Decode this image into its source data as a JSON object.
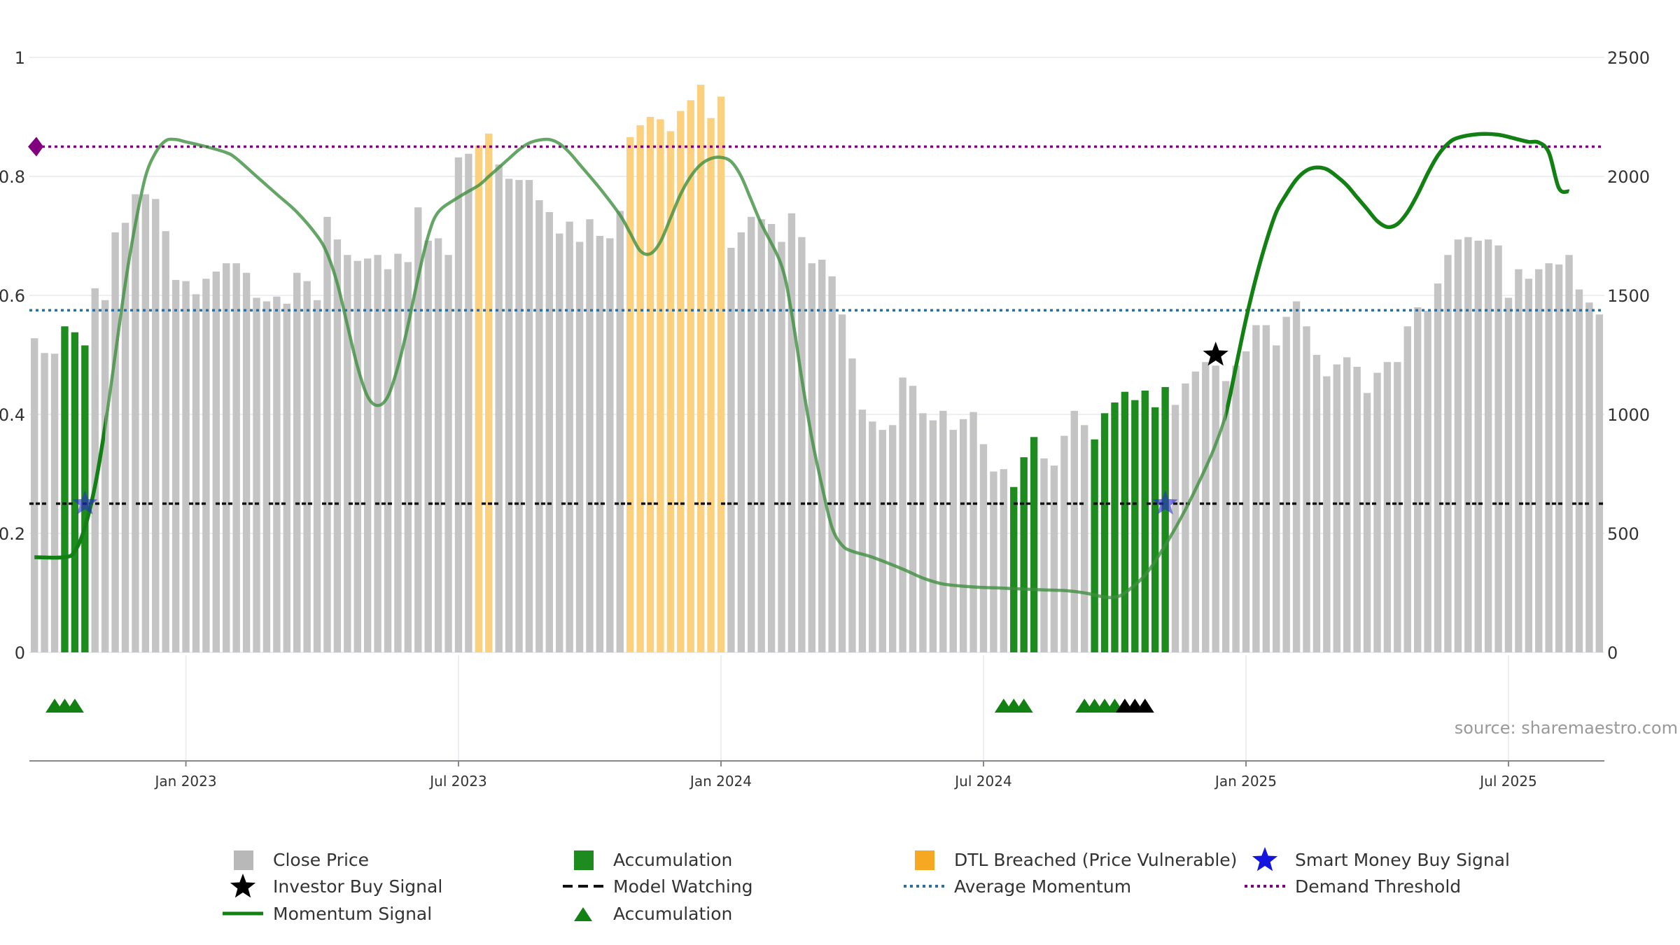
{
  "chart_data": {
    "type": "bar",
    "title": "",
    "y_left_ticks": [
      "1",
      "0.8",
      "0.6",
      "0.4",
      "0.2",
      "0"
    ],
    "y_right_ticks": [
      "2500",
      "2000",
      "1500",
      "1000",
      "500",
      "0"
    ],
    "x_tick_labels": [
      "Jan 2023",
      "Jul 2023",
      "Jan 2024",
      "Jul 2024",
      "Jan 2025",
      "Jul 2025"
    ],
    "ylim_left": [
      0,
      1
    ],
    "ylim_right": [
      0,
      2500
    ],
    "weeks_count": 156,
    "close_price": [
      1320,
      1258,
      1255,
      1370,
      1345,
      1290,
      1530,
      1480,
      1765,
      1805,
      1925,
      1925,
      1905,
      1770,
      1565,
      1560,
      1505,
      1570,
      1600,
      1635,
      1635,
      1595,
      1490,
      1475,
      1495,
      1465,
      1595,
      1560,
      1480,
      1830,
      1735,
      1670,
      1645,
      1655,
      1670,
      1610,
      1675,
      1640,
      1870,
      1730,
      1740,
      1670,
      2080,
      2095,
      2130,
      2180,
      2050,
      1990,
      1985,
      1985,
      1900,
      1850,
      1760,
      1810,
      1725,
      1820,
      1750,
      1740,
      1855,
      2165,
      2215,
      2250,
      2240,
      2190,
      2275,
      2320,
      2385,
      2245,
      2335,
      1700,
      1765,
      1830,
      1820,
      1800,
      1725,
      1845,
      1745,
      1635,
      1650,
      1580,
      1420,
      1235,
      1020,
      970,
      935,
      955,
      1155,
      1120,
      1005,
      975,
      1015,
      935,
      980,
      1010,
      875,
      760,
      770,
      695,
      820,
      905,
      815,
      785,
      910,
      1015,
      955,
      895,
      1005,
      1050,
      1095,
      1060,
      1100,
      1030,
      1115,
      1040,
      1130,
      1180,
      1220,
      1205,
      1140,
      1205,
      1265,
      1375,
      1375,
      1290,
      1410,
      1475,
      1370,
      1250,
      1160,
      1210,
      1240,
      1200,
      1090,
      1175,
      1220,
      1220,
      1370,
      1450,
      1435,
      1550,
      1670,
      1735,
      1745,
      1730,
      1735,
      1710,
      1490,
      1610,
      1570,
      1610,
      1635,
      1630,
      1670,
      1525,
      1470,
      1420
    ],
    "bar_state_note": "0 = Close Price (grey), 1 = Accumulation (green), 2 = DTL Breached (orange)",
    "bar_state": [
      0,
      0,
      0,
      1,
      1,
      1,
      0,
      0,
      0,
      0,
      0,
      0,
      0,
      0,
      0,
      0,
      0,
      0,
      0,
      0,
      0,
      0,
      0,
      0,
      0,
      0,
      0,
      0,
      0,
      0,
      0,
      0,
      0,
      0,
      0,
      0,
      0,
      0,
      0,
      0,
      0,
      0,
      0,
      0,
      2,
      2,
      0,
      0,
      0,
      0,
      0,
      0,
      0,
      0,
      0,
      0,
      0,
      0,
      0,
      2,
      2,
      2,
      2,
      2,
      2,
      2,
      2,
      2,
      2,
      0,
      0,
      0,
      0,
      0,
      0,
      0,
      0,
      0,
      0,
      0,
      0,
      0,
      0,
      0,
      0,
      0,
      0,
      0,
      0,
      0,
      0,
      0,
      0,
      0,
      0,
      0,
      0,
      1,
      1,
      1,
      0,
      0,
      0,
      0,
      0,
      1,
      1,
      1,
      1,
      1,
      1,
      1,
      1,
      0,
      0,
      0,
      0,
      0,
      0,
      0,
      0,
      0,
      0,
      0,
      0,
      0,
      0,
      0,
      0,
      0,
      0,
      0,
      0,
      0,
      0,
      0,
      0,
      0,
      0,
      0,
      0,
      0,
      0,
      0,
      0,
      0,
      0,
      0,
      0,
      0,
      0,
      0,
      0,
      0,
      0,
      0
    ],
    "momentum_signal_points": [
      [
        0,
        0.16
      ],
      [
        3,
        0.16
      ],
      [
        4,
        0.17
      ],
      [
        5,
        0.21
      ],
      [
        6,
        0.28
      ],
      [
        7,
        0.38
      ],
      [
        8,
        0.5
      ],
      [
        9,
        0.62
      ],
      [
        10,
        0.72
      ],
      [
        11,
        0.8
      ],
      [
        12,
        0.84
      ],
      [
        13,
        0.86
      ],
      [
        14,
        0.862
      ],
      [
        15,
        0.858
      ],
      [
        17,
        0.85
      ],
      [
        19,
        0.84
      ],
      [
        20,
        0.83
      ],
      [
        22,
        0.8
      ],
      [
        24,
        0.77
      ],
      [
        26,
        0.74
      ],
      [
        28,
        0.7
      ],
      [
        29,
        0.67
      ],
      [
        30,
        0.62
      ],
      [
        31,
        0.55
      ],
      [
        32,
        0.48
      ],
      [
        33,
        0.43
      ],
      [
        34,
        0.415
      ],
      [
        35,
        0.43
      ],
      [
        36,
        0.48
      ],
      [
        37,
        0.55
      ],
      [
        38,
        0.63
      ],
      [
        39,
        0.7
      ],
      [
        40,
        0.74
      ],
      [
        42,
        0.765
      ],
      [
        44,
        0.785
      ],
      [
        45,
        0.8
      ],
      [
        46,
        0.815
      ],
      [
        47,
        0.83
      ],
      [
        48,
        0.845
      ],
      [
        49,
        0.856
      ],
      [
        50,
        0.861
      ],
      [
        51,
        0.862
      ],
      [
        52,
        0.855
      ],
      [
        53,
        0.84
      ],
      [
        54,
        0.82
      ],
      [
        56,
        0.78
      ],
      [
        58,
        0.735
      ],
      [
        59,
        0.705
      ],
      [
        60,
        0.675
      ],
      [
        61,
        0.67
      ],
      [
        62,
        0.69
      ],
      [
        63,
        0.73
      ],
      [
        64,
        0.77
      ],
      [
        65,
        0.8
      ],
      [
        66,
        0.82
      ],
      [
        67,
        0.83
      ],
      [
        68,
        0.832
      ],
      [
        69,
        0.825
      ],
      [
        70,
        0.8
      ],
      [
        71,
        0.76
      ],
      [
        72,
        0.72
      ],
      [
        74,
        0.65
      ],
      [
        75,
        0.57
      ],
      [
        76,
        0.46
      ],
      [
        77,
        0.36
      ],
      [
        78,
        0.28
      ],
      [
        79,
        0.21
      ],
      [
        80,
        0.18
      ],
      [
        81,
        0.17
      ],
      [
        83,
        0.16
      ],
      [
        86,
        0.14
      ],
      [
        88,
        0.125
      ],
      [
        90,
        0.115
      ],
      [
        93,
        0.11
      ],
      [
        96,
        0.108
      ],
      [
        100,
        0.105
      ],
      [
        102,
        0.104
      ],
      [
        104,
        0.1
      ],
      [
        106,
        0.093
      ],
      [
        107,
        0.093
      ],
      [
        108,
        0.1
      ],
      [
        110,
        0.13
      ],
      [
        112,
        0.18
      ],
      [
        114,
        0.24
      ],
      [
        116,
        0.31
      ],
      [
        117,
        0.35
      ],
      [
        118,
        0.4
      ],
      [
        119,
        0.48
      ],
      [
        120,
        0.56
      ],
      [
        121,
        0.63
      ],
      [
        122,
        0.69
      ],
      [
        123,
        0.74
      ],
      [
        124,
        0.77
      ],
      [
        125,
        0.795
      ],
      [
        126,
        0.81
      ],
      [
        127,
        0.815
      ],
      [
        128,
        0.812
      ],
      [
        129,
        0.8
      ],
      [
        130,
        0.785
      ],
      [
        131,
        0.765
      ],
      [
        132,
        0.745
      ],
      [
        133,
        0.725
      ],
      [
        134,
        0.715
      ],
      [
        135,
        0.72
      ],
      [
        136,
        0.74
      ],
      [
        137,
        0.77
      ],
      [
        138,
        0.805
      ],
      [
        139,
        0.835
      ],
      [
        140,
        0.855
      ],
      [
        141,
        0.865
      ],
      [
        143,
        0.871
      ],
      [
        145,
        0.87
      ],
      [
        147,
        0.862
      ],
      [
        148,
        0.858
      ],
      [
        149,
        0.857
      ],
      [
        150,
        0.84
      ],
      [
        151,
        0.78
      ],
      [
        152,
        0.775
      ]
    ],
    "momentum_faded_range": [
      7,
      118
    ],
    "model_watching_level": 0.25,
    "average_momentum_level": 0.575,
    "demand_threshold_level": 0.85,
    "smart_money_buy_signals": [
      {
        "week": 5,
        "value": 0.25
      },
      {
        "week": 112,
        "value": 0.25
      }
    ],
    "investor_buy_signals": [
      {
        "week": 117,
        "value": 0.5
      }
    ],
    "accumulation_markers": [
      2,
      3,
      4,
      96,
      97,
      98,
      104,
      105,
      106,
      107
    ],
    "investor_markers": [
      108,
      109,
      110
    ],
    "source_text": "source: sharemaestro.com",
    "legend": [
      {
        "label": "Close Price",
        "symbol": "grey-square",
        "color": "#b8b8b8"
      },
      {
        "label": "Accumulation",
        "symbol": "green-square",
        "color": "#1e8b1e"
      },
      {
        "label": "DTL Breached (Price Vulnerable)",
        "symbol": "orange-square",
        "color": "#f7a823"
      },
      {
        "label": "Smart Money Buy Signal",
        "symbol": "blue-star",
        "color": "#1515e0"
      },
      {
        "label": "Investor Buy Signal",
        "symbol": "black-star",
        "color": "#000000"
      },
      {
        "label": "Model Watching",
        "symbol": "dashed-line",
        "color": "#111111"
      },
      {
        "label": "Average Momentum",
        "symbol": "dotted-line",
        "color": "#2e6f9e"
      },
      {
        "label": "Demand Threshold",
        "symbol": "dotted-line",
        "color": "#800080"
      },
      {
        "label": "Momentum Signal",
        "symbol": "solid-line",
        "color": "#138013"
      },
      {
        "label": "Accumulation",
        "symbol": "green-triangle",
        "color": "#138013"
      }
    ]
  }
}
